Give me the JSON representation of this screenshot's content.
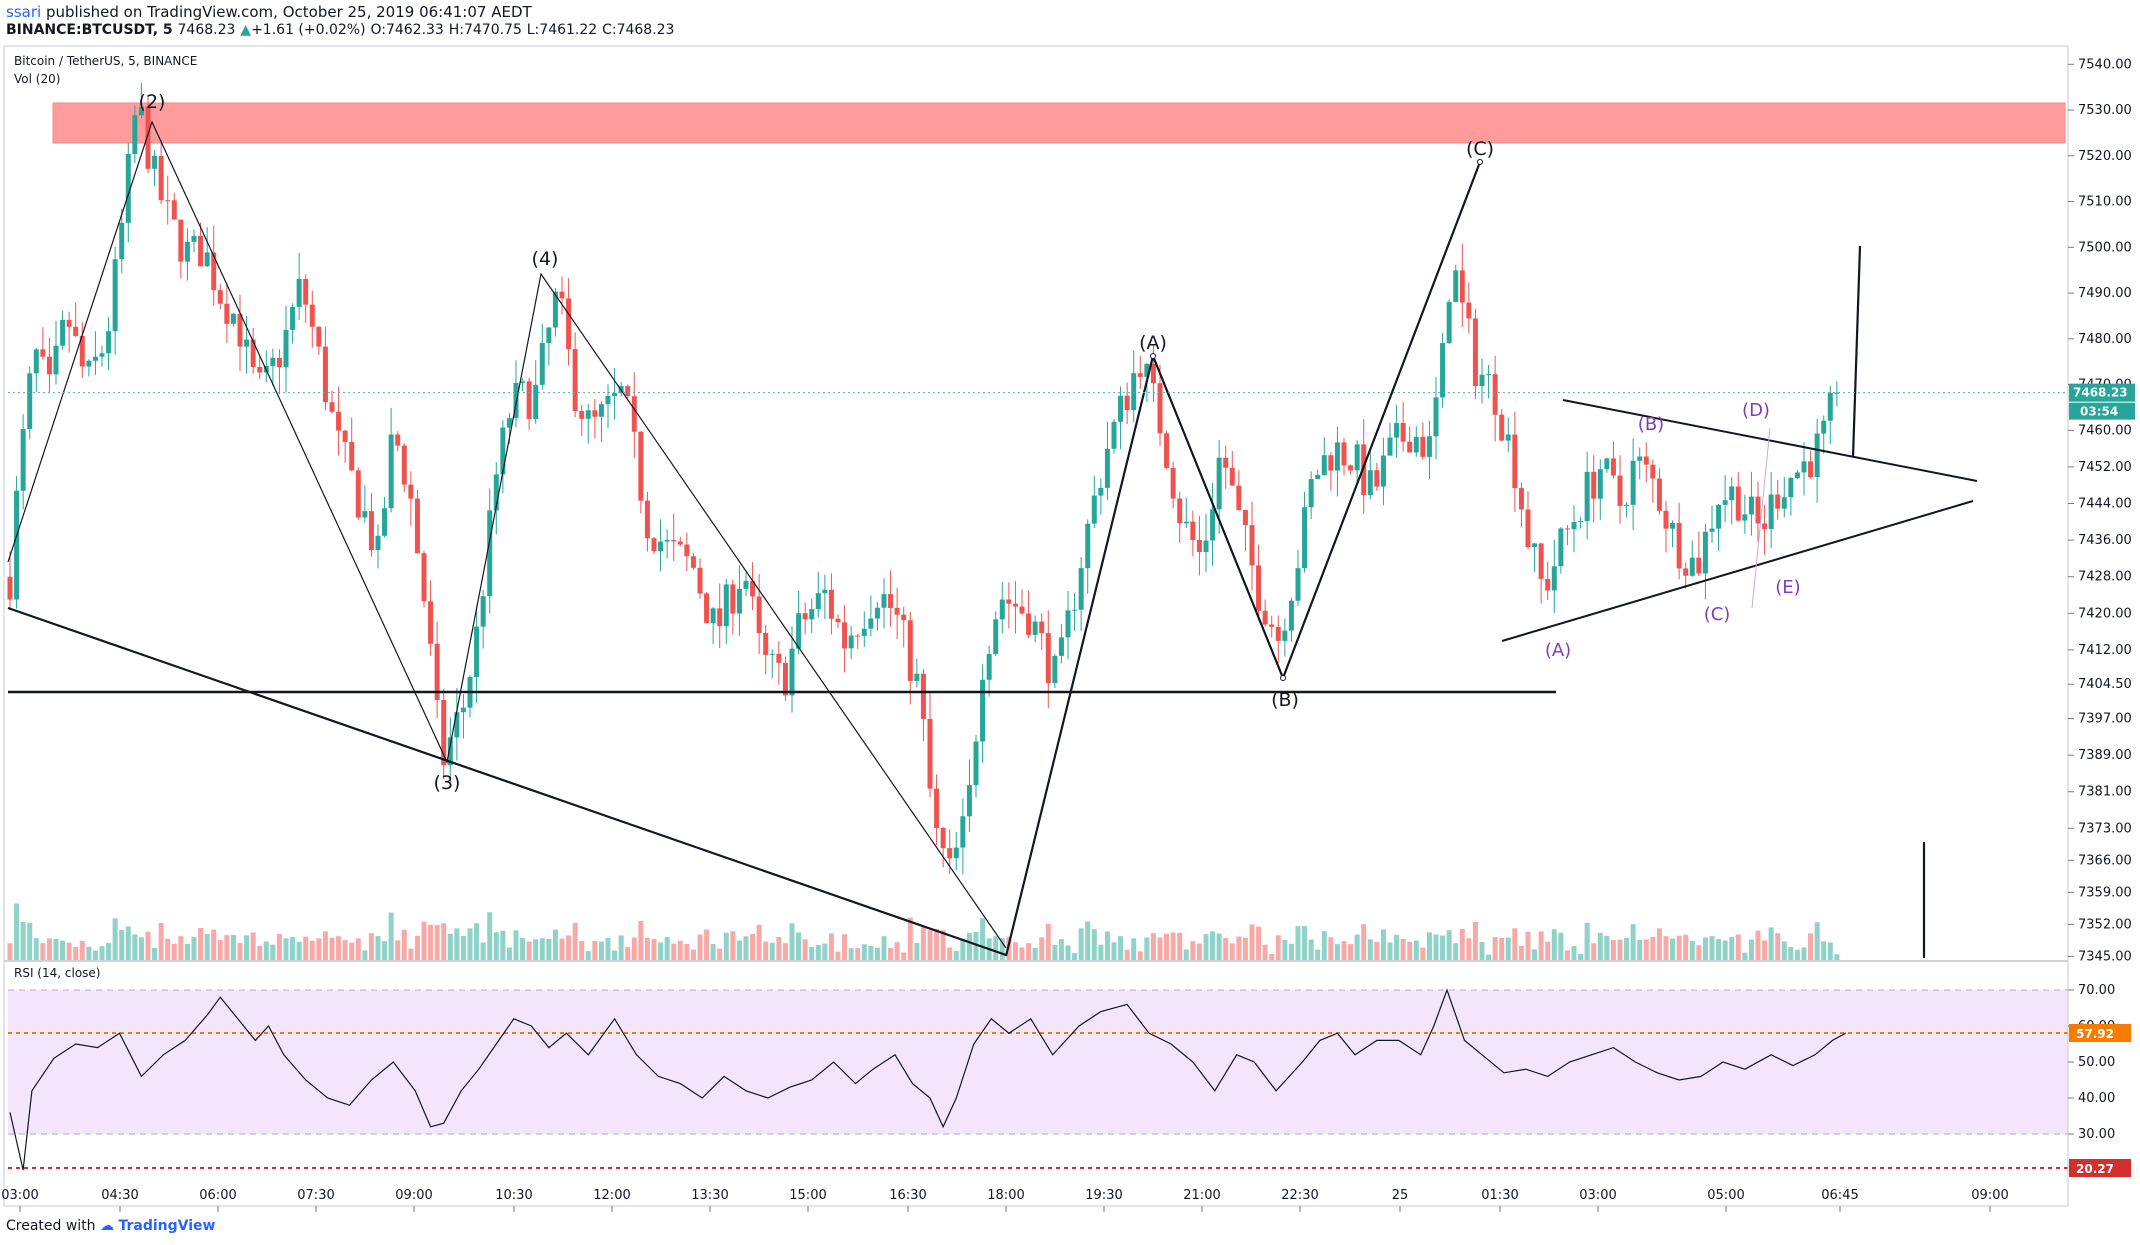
{
  "header": {
    "user": "ssari",
    "published_text": "published on TradingView.com, October 25, 2019 06:41:07 AEDT",
    "symbol": "BINANCE:BTCUSDT, 5",
    "last": "7468.23",
    "change": "+1.61 (+0.02%)",
    "open_label": "O:",
    "open": "7462.33",
    "high_label": "H:",
    "high": "7470.75",
    "low_label": "L:",
    "low": "7461.22",
    "close_label": "C:",
    "close": "7468.23"
  },
  "legend": {
    "title": "Bitcoin / TetherUS, 5, BINANCE",
    "volume": "Vol (20)",
    "rsi": "RSI (14, close)"
  },
  "footer": {
    "created_with": "Created with",
    "brand": "TradingView"
  },
  "colors": {
    "up": "#26a69a",
    "down": "#ef5350",
    "vol_up": "#8fd2c8",
    "vol_down": "#f7a9a7",
    "resistance": "#ff9b9b",
    "rsi_band": "#f3e5fb",
    "price_line": "#4fa8c8",
    "wave_purple": "#7e3fbf"
  },
  "chart_data": [
    {
      "type": "candlestick",
      "title": "Bitcoin / TetherUS, 5, BINANCE",
      "timeframe": "5",
      "x_ticks": [
        "03:00",
        "04:30",
        "06:00",
        "07:30",
        "09:00",
        "10:30",
        "12:00",
        "13:30",
        "15:00",
        "16:30",
        "18:00",
        "19:30",
        "21:00",
        "22:30",
        "25",
        "01:30",
        "03:00",
        "05:00",
        "06:45",
        "09:00"
      ],
      "y_ticks": [
        7345,
        7352,
        7359,
        7366,
        7373,
        7381,
        7389,
        7397,
        7404.5,
        7412,
        7420,
        7428,
        7436,
        7444,
        7452,
        7460,
        7470,
        7480,
        7490,
        7500,
        7510,
        7520,
        7530,
        7540
      ],
      "ylim": [
        7344,
        7544
      ],
      "last_price": 7468.23,
      "countdown": "03:54",
      "price_path": [
        [
          0,
          7428
        ],
        [
          4,
          7450
        ],
        [
          11,
          7477
        ],
        [
          18,
          7468
        ],
        [
          26,
          7485
        ],
        [
          35,
          7470
        ],
        [
          44,
          7480
        ],
        [
          50,
          7500
        ],
        [
          58,
          7532
        ],
        [
          66,
          7515
        ],
        [
          73,
          7505
        ],
        [
          82,
          7498
        ],
        [
          88,
          7500
        ],
        [
          96,
          7490
        ],
        [
          104,
          7484
        ],
        [
          110,
          7472
        ],
        [
          115,
          7468
        ],
        [
          125,
          7479
        ],
        [
          133,
          7492
        ],
        [
          140,
          7478
        ],
        [
          149,
          7458
        ],
        [
          163,
          7440
        ],
        [
          168,
          7432
        ],
        [
          175,
          7460
        ],
        [
          182,
          7448
        ],
        [
          190,
          7420
        ],
        [
          197,
          7387
        ],
        [
          207,
          7400
        ],
        [
          213,
          7415
        ],
        [
          222,
          7450
        ],
        [
          229,
          7466
        ],
        [
          240,
          7468
        ],
        [
          250,
          7490
        ],
        [
          257,
          7470
        ],
        [
          265,
          7460
        ],
        [
          280,
          7468
        ],
        [
          291,
          7440
        ],
        [
          300,
          7434
        ],
        [
          312,
          7430
        ],
        [
          322,
          7416
        ],
        [
          335,
          7430
        ],
        [
          343,
          7410
        ],
        [
          353,
          7405
        ],
        [
          361,
          7418
        ],
        [
          372,
          7424
        ],
        [
          381,
          7414
        ],
        [
          389,
          7420
        ],
        [
          396,
          7425
        ],
        [
          404,
          7420
        ],
        [
          415,
          7403
        ],
        [
          422,
          7372
        ],
        [
          429,
          7363
        ],
        [
          437,
          7375
        ],
        [
          444,
          7410
        ],
        [
          452,
          7424
        ],
        [
          465,
          7420
        ],
        [
          478,
          7405
        ],
        [
          489,
          7432
        ],
        [
          500,
          7455
        ],
        [
          516,
          7476
        ],
        [
          526,
          7460
        ],
        [
          535,
          7440
        ],
        [
          544,
          7432
        ],
        [
          553,
          7456
        ],
        [
          561,
          7440
        ],
        [
          570,
          7425
        ],
        [
          579,
          7415
        ],
        [
          589,
          7434
        ],
        [
          595,
          7450
        ],
        [
          604,
          7456
        ],
        [
          613,
          7454
        ],
        [
          622,
          7446
        ],
        [
          631,
          7456
        ],
        [
          639,
          7460
        ],
        [
          648,
          7456
        ],
        [
          654,
          7475
        ],
        [
          658,
          7498
        ],
        [
          663,
          7486
        ],
        [
          669,
          7474
        ],
        [
          678,
          7468
        ],
        [
          687,
          7452
        ],
        [
          694,
          7434
        ],
        [
          700,
          7425
        ],
        [
          709,
          7436
        ],
        [
          718,
          7445
        ],
        [
          726,
          7452
        ],
        [
          735,
          7444
        ],
        [
          742,
          7453
        ],
        [
          751,
          7448
        ],
        [
          760,
          7436
        ],
        [
          770,
          7430
        ],
        [
          780,
          7446
        ],
        [
          788,
          7446
        ],
        [
          799,
          7438
        ],
        [
          808,
          7448
        ],
        [
          818,
          7452
        ],
        [
          827,
          7457
        ],
        [
          834,
          7468
        ]
      ],
      "resistance_zone": [
        7523,
        7532
      ],
      "support_line": 7402,
      "wave_labels_black": [
        "(2)",
        "(3)",
        "(4)",
        "(A)",
        "(B)",
        "(C)"
      ],
      "wave_labels_purple": [
        "(A)",
        "(B)",
        "(C)",
        "(D)",
        "(E)"
      ]
    },
    {
      "type": "bar",
      "title": "Vol (20)"
    },
    {
      "type": "line",
      "title": "RSI (14, close)",
      "y_ticks": [
        30,
        40,
        50,
        57.92,
        60,
        70
      ],
      "band": [
        30,
        70
      ],
      "last_value": 57.92,
      "oversold_line": 20.27,
      "ylim": [
        15,
        75
      ],
      "values": [
        [
          0,
          36
        ],
        [
          6,
          20
        ],
        [
          10,
          42
        ],
        [
          20,
          51
        ],
        [
          30,
          55
        ],
        [
          40,
          54
        ],
        [
          50,
          58
        ],
        [
          60,
          46
        ],
        [
          70,
          52
        ],
        [
          80,
          56
        ],
        [
          90,
          63
        ],
        [
          96,
          68
        ],
        [
          104,
          62
        ],
        [
          112,
          56
        ],
        [
          118,
          60
        ],
        [
          125,
          52
        ],
        [
          135,
          45
        ],
        [
          145,
          40
        ],
        [
          155,
          38
        ],
        [
          165,
          45
        ],
        [
          175,
          50
        ],
        [
          185,
          42
        ],
        [
          192,
          32
        ],
        [
          198,
          33
        ],
        [
          206,
          42
        ],
        [
          214,
          48
        ],
        [
          222,
          55
        ],
        [
          230,
          62
        ],
        [
          238,
          60
        ],
        [
          246,
          54
        ],
        [
          254,
          58
        ],
        [
          264,
          52
        ],
        [
          276,
          62
        ],
        [
          286,
          52
        ],
        [
          296,
          46
        ],
        [
          306,
          44
        ],
        [
          316,
          40
        ],
        [
          326,
          46
        ],
        [
          336,
          42
        ],
        [
          346,
          40
        ],
        [
          356,
          43
        ],
        [
          366,
          45
        ],
        [
          376,
          50
        ],
        [
          386,
          44
        ],
        [
          394,
          48
        ],
        [
          404,
          52
        ],
        [
          412,
          44
        ],
        [
          420,
          40
        ],
        [
          426,
          32
        ],
        [
          432,
          40
        ],
        [
          440,
          55
        ],
        [
          448,
          62
        ],
        [
          456,
          58
        ],
        [
          466,
          62
        ],
        [
          476,
          52
        ],
        [
          488,
          60
        ],
        [
          498,
          64
        ],
        [
          510,
          66
        ],
        [
          520,
          58
        ],
        [
          530,
          55
        ],
        [
          540,
          50
        ],
        [
          550,
          42
        ],
        [
          560,
          52
        ],
        [
          568,
          50
        ],
        [
          578,
          42
        ],
        [
          590,
          50
        ],
        [
          598,
          56
        ],
        [
          606,
          58
        ],
        [
          614,
          52
        ],
        [
          624,
          56
        ],
        [
          634,
          56
        ],
        [
          644,
          52
        ],
        [
          650,
          60
        ],
        [
          656,
          70
        ],
        [
          664,
          56
        ],
        [
          672,
          52
        ],
        [
          682,
          47
        ],
        [
          692,
          48
        ],
        [
          702,
          46
        ],
        [
          712,
          50
        ],
        [
          722,
          52
        ],
        [
          732,
          54
        ],
        [
          742,
          50
        ],
        [
          752,
          47
        ],
        [
          762,
          45
        ],
        [
          772,
          46
        ],
        [
          782,
          50
        ],
        [
          792,
          48
        ],
        [
          804,
          52
        ],
        [
          814,
          49
        ],
        [
          824,
          52
        ],
        [
          832,
          56
        ],
        [
          838,
          58
        ]
      ]
    }
  ]
}
